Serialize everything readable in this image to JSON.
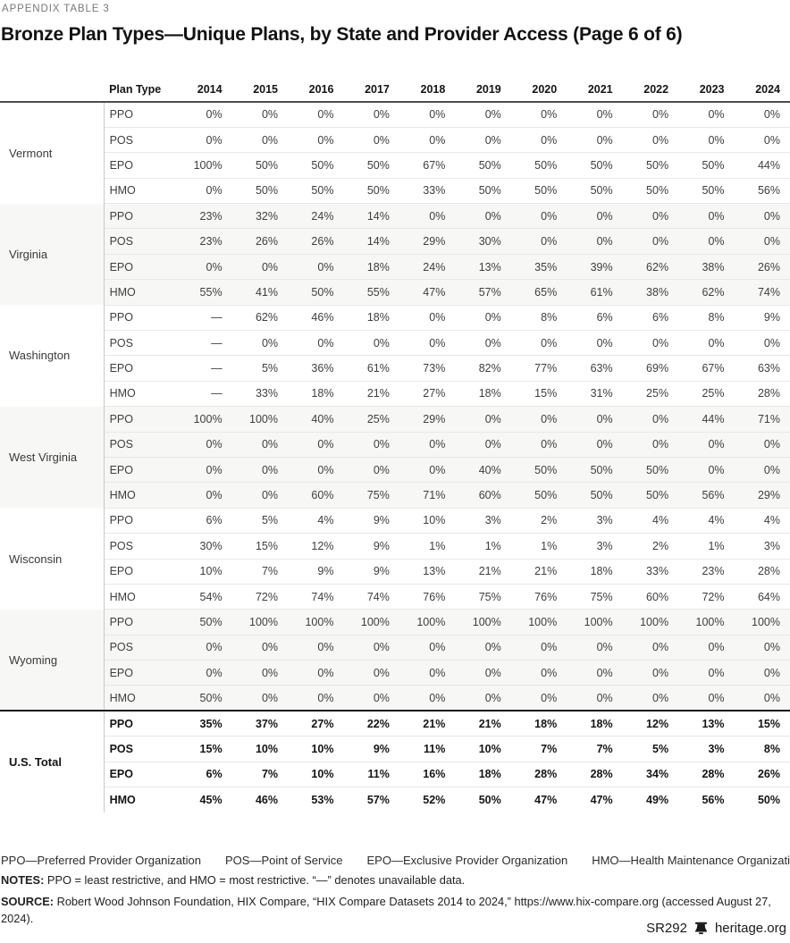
{
  "header": {
    "eyebrow": "APPENDIX TABLE 3",
    "title": "Bronze Plan Types—Unique Plans, by State and Provider Access (Page 6 of 6)"
  },
  "table": {
    "plan_type_header": "Plan Type",
    "years": [
      "2014",
      "2015",
      "2016",
      "2017",
      "2018",
      "2019",
      "2020",
      "2021",
      "2022",
      "2023",
      "2024"
    ],
    "groups": [
      {
        "state": "Vermont",
        "total": false,
        "rows": [
          {
            "plan": "PPO",
            "values": [
              "0%",
              "0%",
              "0%",
              "0%",
              "0%",
              "0%",
              "0%",
              "0%",
              "0%",
              "0%",
              "0%"
            ]
          },
          {
            "plan": "POS",
            "values": [
              "0%",
              "0%",
              "0%",
              "0%",
              "0%",
              "0%",
              "0%",
              "0%",
              "0%",
              "0%",
              "0%"
            ]
          },
          {
            "plan": "EPO",
            "values": [
              "100%",
              "50%",
              "50%",
              "50%",
              "67%",
              "50%",
              "50%",
              "50%",
              "50%",
              "50%",
              "44%"
            ]
          },
          {
            "plan": "HMO",
            "values": [
              "0%",
              "50%",
              "50%",
              "50%",
              "33%",
              "50%",
              "50%",
              "50%",
              "50%",
              "50%",
              "56%"
            ]
          }
        ]
      },
      {
        "state": "Virginia",
        "total": false,
        "rows": [
          {
            "plan": "PPO",
            "values": [
              "23%",
              "32%",
              "24%",
              "14%",
              "0%",
              "0%",
              "0%",
              "0%",
              "0%",
              "0%",
              "0%"
            ]
          },
          {
            "plan": "POS",
            "values": [
              "23%",
              "26%",
              "26%",
              "14%",
              "29%",
              "30%",
              "0%",
              "0%",
              "0%",
              "0%",
              "0%"
            ]
          },
          {
            "plan": "EPO",
            "values": [
              "0%",
              "0%",
              "0%",
              "18%",
              "24%",
              "13%",
              "35%",
              "39%",
              "62%",
              "38%",
              "26%"
            ]
          },
          {
            "plan": "HMO",
            "values": [
              "55%",
              "41%",
              "50%",
              "55%",
              "47%",
              "57%",
              "65%",
              "61%",
              "38%",
              "62%",
              "74%"
            ]
          }
        ]
      },
      {
        "state": "Washington",
        "total": false,
        "rows": [
          {
            "plan": "PPO",
            "values": [
              "—",
              "62%",
              "46%",
              "18%",
              "0%",
              "0%",
              "8%",
              "6%",
              "6%",
              "8%",
              "9%"
            ]
          },
          {
            "plan": "POS",
            "values": [
              "—",
              "0%",
              "0%",
              "0%",
              "0%",
              "0%",
              "0%",
              "0%",
              "0%",
              "0%",
              "0%"
            ]
          },
          {
            "plan": "EPO",
            "values": [
              "—",
              "5%",
              "36%",
              "61%",
              "73%",
              "82%",
              "77%",
              "63%",
              "69%",
              "67%",
              "63%"
            ]
          },
          {
            "plan": "HMO",
            "values": [
              "—",
              "33%",
              "18%",
              "21%",
              "27%",
              "18%",
              "15%",
              "31%",
              "25%",
              "25%",
              "28%"
            ]
          }
        ]
      },
      {
        "state": "West Virginia",
        "total": false,
        "rows": [
          {
            "plan": "PPO",
            "values": [
              "100%",
              "100%",
              "40%",
              "25%",
              "29%",
              "0%",
              "0%",
              "0%",
              "0%",
              "44%",
              "71%"
            ]
          },
          {
            "plan": "POS",
            "values": [
              "0%",
              "0%",
              "0%",
              "0%",
              "0%",
              "0%",
              "0%",
              "0%",
              "0%",
              "0%",
              "0%"
            ]
          },
          {
            "plan": "EPO",
            "values": [
              "0%",
              "0%",
              "0%",
              "0%",
              "0%",
              "40%",
              "50%",
              "50%",
              "50%",
              "0%",
              "0%"
            ]
          },
          {
            "plan": "HMO",
            "values": [
              "0%",
              "0%",
              "60%",
              "75%",
              "71%",
              "60%",
              "50%",
              "50%",
              "50%",
              "56%",
              "29%"
            ]
          }
        ]
      },
      {
        "state": "Wisconsin",
        "total": false,
        "rows": [
          {
            "plan": "PPO",
            "values": [
              "6%",
              "5%",
              "4%",
              "9%",
              "10%",
              "3%",
              "2%",
              "3%",
              "4%",
              "4%",
              "4%"
            ]
          },
          {
            "plan": "POS",
            "values": [
              "30%",
              "15%",
              "12%",
              "9%",
              "1%",
              "1%",
              "1%",
              "3%",
              "2%",
              "1%",
              "3%"
            ]
          },
          {
            "plan": "EPO",
            "values": [
              "10%",
              "7%",
              "9%",
              "9%",
              "13%",
              "21%",
              "21%",
              "18%",
              "33%",
              "23%",
              "28%"
            ]
          },
          {
            "plan": "HMO",
            "values": [
              "54%",
              "72%",
              "74%",
              "74%",
              "76%",
              "75%",
              "76%",
              "75%",
              "60%",
              "72%",
              "64%"
            ]
          }
        ]
      },
      {
        "state": "Wyoming",
        "total": false,
        "rows": [
          {
            "plan": "PPO",
            "values": [
              "50%",
              "100%",
              "100%",
              "100%",
              "100%",
              "100%",
              "100%",
              "100%",
              "100%",
              "100%",
              "100%"
            ]
          },
          {
            "plan": "POS",
            "values": [
              "0%",
              "0%",
              "0%",
              "0%",
              "0%",
              "0%",
              "0%",
              "0%",
              "0%",
              "0%",
              "0%"
            ]
          },
          {
            "plan": "EPO",
            "values": [
              "0%",
              "0%",
              "0%",
              "0%",
              "0%",
              "0%",
              "0%",
              "0%",
              "0%",
              "0%",
              "0%"
            ]
          },
          {
            "plan": "HMO",
            "values": [
              "50%",
              "0%",
              "0%",
              "0%",
              "0%",
              "0%",
              "0%",
              "0%",
              "0%",
              "0%",
              "0%"
            ]
          }
        ]
      },
      {
        "state": "U.S. Total",
        "total": true,
        "rows": [
          {
            "plan": "PPO",
            "values": [
              "35%",
              "37%",
              "27%",
              "22%",
              "21%",
              "21%",
              "18%",
              "18%",
              "12%",
              "13%",
              "15%"
            ]
          },
          {
            "plan": "POS",
            "values": [
              "15%",
              "10%",
              "10%",
              "9%",
              "11%",
              "10%",
              "7%",
              "7%",
              "5%",
              "3%",
              "8%"
            ]
          },
          {
            "plan": "EPO",
            "values": [
              "6%",
              "7%",
              "10%",
              "11%",
              "16%",
              "18%",
              "28%",
              "28%",
              "34%",
              "28%",
              "26%"
            ]
          },
          {
            "plan": "HMO",
            "values": [
              "45%",
              "46%",
              "53%",
              "57%",
              "52%",
              "50%",
              "47%",
              "47%",
              "49%",
              "56%",
              "50%"
            ]
          }
        ]
      }
    ]
  },
  "footer": {
    "legend": [
      "PPO—Preferred Provider Organization",
      "POS—Point of Service",
      "EPO—Exclusive Provider Organization",
      "HMO—Health Maintenance Organization"
    ],
    "notes_label": "NOTES:",
    "notes_text": "PPO = least restrictive, and HMO = most restrictive. “—” denotes unavailable data.",
    "source_label": "SOURCE:",
    "source_text": "Robert Wood Johnson Foundation, HIX Compare, “HIX Compare Datasets 2014 to 2024,” https://www.hix-compare.org (accessed August 27, 2024).",
    "report_id": "SR292",
    "site": "heritage.org"
  },
  "colors": {
    "stripe_background": "#f7f7f5",
    "header_rule": "#4c4d4f",
    "total_rule": "#141414",
    "row_divider": "#e8e8e6",
    "column_divider": "#c9c9c7",
    "eyebrow_text": "#77787b"
  }
}
